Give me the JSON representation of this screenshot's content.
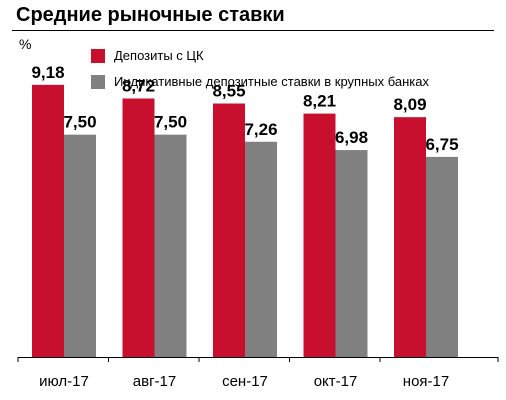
{
  "chart_data": {
    "type": "bar",
    "title": "Средние рыночные ставки",
    "ylabel": "%",
    "categories": [
      "июл-17",
      "авг-17",
      "сен-17",
      "окт-17",
      "ноя-17"
    ],
    "series": [
      {
        "name": "Депозиты с ЦК",
        "color": "#c8102e",
        "values": [
          9.18,
          8.72,
          8.55,
          8.21,
          8.09
        ],
        "labels": [
          "9,18",
          "8,72",
          "8,55",
          "8,21",
          "8,09"
        ]
      },
      {
        "name": "Индикативные депозитные ставки в крупных банках",
        "color": "#808080",
        "values": [
          7.5,
          7.5,
          7.26,
          6.98,
          6.75
        ],
        "labels": [
          "7,50",
          "7,50",
          "7,26",
          "6,98",
          "6,75"
        ]
      }
    ],
    "ylim": [
      0,
      11.03
    ],
    "grid": false,
    "legend": "top"
  }
}
